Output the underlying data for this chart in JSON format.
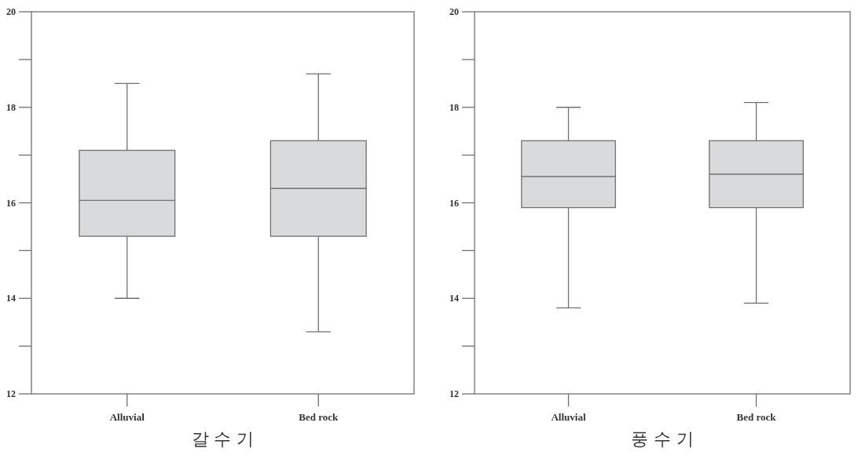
{
  "chart_data": [
    {
      "type": "box",
      "xlabel": "갈 수 기",
      "categories": [
        "Alluvial",
        "Bed rock"
      ],
      "color": "#d9dadc",
      "boxes": [
        {
          "low": 14.0,
          "q1": 15.3,
          "median": 16.05,
          "q3": 17.1,
          "high": 18.5
        },
        {
          "low": 13.3,
          "q1": 15.3,
          "median": 16.3,
          "q3": 17.3,
          "high": 18.7
        }
      ],
      "ylim": [
        12,
        20
      ],
      "yticks": [
        12,
        {
          "value": 13,
          "label": null
        },
        14,
        {
          "value": 15,
          "label": null
        },
        16,
        {
          "value": 17,
          "label": null
        },
        18,
        {
          "value": 19,
          "label": null
        },
        20
      ]
    },
    {
      "type": "box",
      "xlabel": "풍 수 기",
      "categories": [
        "Alluvial",
        "Bed rock"
      ],
      "color": "#d9dadc",
      "boxes": [
        {
          "low": 13.8,
          "q1": 15.9,
          "median": 16.55,
          "q3": 17.3,
          "high": 18.0
        },
        {
          "low": 13.9,
          "q1": 15.9,
          "median": 16.6,
          "q3": 17.3,
          "high": 18.1
        }
      ],
      "ylim": [
        12,
        20
      ],
      "yticks": [
        12,
        {
          "value": 13,
          "label": null
        },
        14,
        {
          "value": 15,
          "label": null
        },
        16,
        {
          "value": 17,
          "label": null
        },
        18,
        {
          "value": 19,
          "label": null
        },
        20
      ]
    }
  ]
}
